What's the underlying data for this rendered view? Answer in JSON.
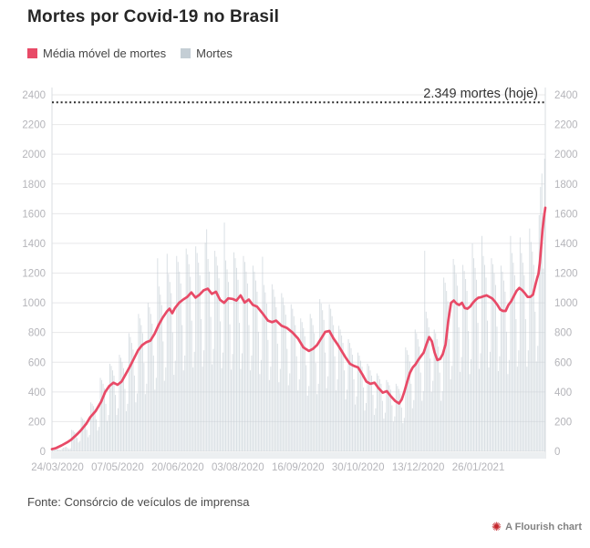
{
  "header": {
    "title": "Mortes por Covid-19 no Brasil"
  },
  "legend": {
    "items": [
      {
        "label": "Média móvel de mortes",
        "color": "#e84a67"
      },
      {
        "label": "Mortes",
        "color": "#c4ced5"
      }
    ]
  },
  "footer": {
    "source": "Fonte: Consórcio de veículos de imprensa"
  },
  "credit": {
    "label": "A Flourish chart",
    "icon": "flourish-burst-icon",
    "icon_color": "#c4262c",
    "icon_glyph": "✺"
  },
  "chart_data": {
    "type": "bar+line",
    "title": "Mortes por Covid-19 no Brasil",
    "xlabel": "",
    "ylabel": "",
    "ylim": [
      0,
      2400
    ],
    "y_tick_step": 200,
    "grid": true,
    "legend_position": "top-left",
    "x_tick_labels": [
      "24/03/2020",
      "07/05/2020",
      "20/06/2020",
      "03/08/2020",
      "16/09/2020",
      "30/10/2020",
      "13/12/2020",
      "26/01/2021"
    ],
    "x_tick_step_days": 44,
    "total_days": 362,
    "threshold_line": {
      "value": 2349,
      "label": "2.349 mortes (hoje)",
      "style": "dotted",
      "color": "#2f2f2f"
    },
    "series": [
      {
        "name": "Média móvel de mortes",
        "type": "line",
        "color": "#e84a67",
        "points": [
          [
            0,
            15
          ],
          [
            3,
            22
          ],
          [
            7,
            40
          ],
          [
            11,
            60
          ],
          [
            14,
            78
          ],
          [
            18,
            112
          ],
          [
            21,
            140
          ],
          [
            25,
            185
          ],
          [
            28,
            230
          ],
          [
            32,
            272
          ],
          [
            36,
            335
          ],
          [
            39,
            400
          ],
          [
            42,
            440
          ],
          [
            45,
            462
          ],
          [
            48,
            448
          ],
          [
            51,
            470
          ],
          [
            54,
            520
          ],
          [
            57,
            570
          ],
          [
            60,
            625
          ],
          [
            63,
            680
          ],
          [
            66,
            715
          ],
          [
            69,
            735
          ],
          [
            72,
            745
          ],
          [
            75,
            790
          ],
          [
            78,
            850
          ],
          [
            81,
            900
          ],
          [
            84,
            941
          ],
          [
            86,
            960
          ],
          [
            88,
            930
          ],
          [
            90,
            965
          ],
          [
            93,
            1000
          ],
          [
            96,
            1022
          ],
          [
            99,
            1040
          ],
          [
            102,
            1070
          ],
          [
            105,
            1035
          ],
          [
            108,
            1055
          ],
          [
            111,
            1084
          ],
          [
            114,
            1095
          ],
          [
            117,
            1060
          ],
          [
            120,
            1075
          ],
          [
            123,
            1020
          ],
          [
            126,
            1000
          ],
          [
            129,
            1030
          ],
          [
            132,
            1026
          ],
          [
            135,
            1015
          ],
          [
            138,
            1050
          ],
          [
            141,
            1002
          ],
          [
            144,
            1022
          ],
          [
            147,
            986
          ],
          [
            150,
            975
          ],
          [
            154,
            930
          ],
          [
            158,
            880
          ],
          [
            161,
            870
          ],
          [
            164,
            880
          ],
          [
            168,
            845
          ],
          [
            172,
            830
          ],
          [
            176,
            800
          ],
          [
            180,
            760
          ],
          [
            184,
            700
          ],
          [
            188,
            676
          ],
          [
            191,
            690
          ],
          [
            194,
            716
          ],
          [
            197,
            760
          ],
          [
            200,
            805
          ],
          [
            203,
            810
          ],
          [
            206,
            760
          ],
          [
            209,
            720
          ],
          [
            212,
            675
          ],
          [
            215,
            630
          ],
          [
            218,
            590
          ],
          [
            221,
            575
          ],
          [
            224,
            565
          ],
          [
            227,
            520
          ],
          [
            230,
            470
          ],
          [
            233,
            455
          ],
          [
            236,
            462
          ],
          [
            239,
            425
          ],
          [
            242,
            395
          ],
          [
            245,
            405
          ],
          [
            248,
            370
          ],
          [
            251,
            340
          ],
          [
            254,
            322
          ],
          [
            256,
            350
          ],
          [
            258,
            405
          ],
          [
            260,
            470
          ],
          [
            262,
            530
          ],
          [
            264,
            565
          ],
          [
            266,
            585
          ],
          [
            268,
            615
          ],
          [
            270,
            640
          ],
          [
            272,
            665
          ],
          [
            274,
            720
          ],
          [
            276,
            770
          ],
          [
            278,
            740
          ],
          [
            280,
            665
          ],
          [
            282,
            615
          ],
          [
            284,
            622
          ],
          [
            286,
            655
          ],
          [
            288,
            720
          ],
          [
            290,
            880
          ],
          [
            292,
            1000
          ],
          [
            294,
            1015
          ],
          [
            296,
            995
          ],
          [
            298,
            985
          ],
          [
            300,
            1000
          ],
          [
            302,
            965
          ],
          [
            304,
            960
          ],
          [
            306,
            975
          ],
          [
            308,
            1000
          ],
          [
            310,
            1020
          ],
          [
            312,
            1034
          ],
          [
            314,
            1038
          ],
          [
            316,
            1045
          ],
          [
            318,
            1050
          ],
          [
            320,
            1040
          ],
          [
            322,
            1030
          ],
          [
            324,
            1010
          ],
          [
            326,
            985
          ],
          [
            328,
            955
          ],
          [
            330,
            945
          ],
          [
            332,
            945
          ],
          [
            334,
            985
          ],
          [
            336,
            1010
          ],
          [
            338,
            1045
          ],
          [
            340,
            1080
          ],
          [
            342,
            1100
          ],
          [
            344,
            1085
          ],
          [
            346,
            1065
          ],
          [
            348,
            1040
          ],
          [
            350,
            1040
          ],
          [
            352,
            1055
          ],
          [
            354,
            1130
          ],
          [
            355,
            1165
          ],
          [
            356,
            1195
          ],
          [
            357,
            1270
          ],
          [
            358,
            1380
          ],
          [
            359,
            1495
          ],
          [
            360,
            1575
          ],
          [
            361,
            1640
          ]
        ]
      },
      {
        "name": "Mortes",
        "type": "bar",
        "color": "#c4ced5",
        "values": [
          5,
          8,
          10,
          12,
          14,
          10,
          8,
          18,
          25,
          28,
          30,
          22,
          15,
          20,
          145,
          140,
          130,
          125,
          90,
          60,
          70,
          230,
          220,
          210,
          195,
          145,
          95,
          110,
          330,
          320,
          305,
          285,
          215,
          140,
          165,
          495,
          480,
          455,
          425,
          320,
          205,
          245,
          590,
          575,
          545,
          510,
          380,
          245,
          290,
          650,
          630,
          600,
          560,
          420,
          270,
          320,
          795,
          770,
          730,
          685,
          510,
          330,
          390,
          925,
          895,
          850,
          795,
          595,
          385,
          455,
          1000,
          970,
          925,
          860,
          645,
          415,
          495,
          1300,
          1110,
          1055,
          985,
          740,
          475,
          565,
          1330,
          1195,
          1140,
          1065,
          800,
          515,
          610,
          1315,
          1275,
          1210,
          1130,
          850,
          545,
          645,
          1365,
          1325,
          1260,
          1175,
          880,
          565,
          670,
          1380,
          1335,
          1270,
          1185,
          890,
          570,
          680,
          1405,
          1495,
          1295,
          1210,
          905,
          585,
          690,
          1350,
          1310,
          1250,
          1165,
          875,
          560,
          665,
          1540,
          1285,
          1225,
          1140,
          855,
          550,
          655,
          1340,
          1300,
          1235,
          1155,
          865,
          555,
          660,
          1315,
          1275,
          1210,
          1130,
          850,
          545,
          645,
          1250,
          1210,
          1150,
          1075,
          805,
          520,
          615,
          1310,
          1120,
          1070,
          995,
          750,
          480,
          570,
          1125,
          1090,
          1040,
          970,
          725,
          465,
          555,
          1065,
          1035,
          985,
          920,
          690,
          445,
          525,
          990,
          960,
          910,
          850,
          640,
          410,
          485,
          895,
          870,
          830,
          775,
          580,
          375,
          440,
          925,
          895,
          850,
          795,
          595,
          385,
          455,
          1025,
          995,
          950,
          885,
          665,
          425,
          505,
          990,
          960,
          910,
          850,
          640,
          410,
          485,
          845,
          820,
          780,
          730,
          545,
          350,
          415,
          755,
          730,
          695,
          650,
          485,
          315,
          370,
          665,
          645,
          610,
          570,
          430,
          275,
          325,
          590,
          575,
          545,
          510,
          380,
          245,
          290,
          525,
          510,
          485,
          455,
          340,
          220,
          260,
          480,
          465,
          445,
          415,
          310,
          200,
          235,
          455,
          440,
          420,
          390,
          295,
          190,
          225,
          700,
          680,
          650,
          605,
          455,
          290,
          345,
          820,
          795,
          755,
          705,
          530,
          340,
          405,
          1350,
          940,
          895,
          835,
          625,
          400,
          475,
          820,
          795,
          755,
          705,
          530,
          340,
          405,
          1170,
          1135,
          1080,
          1010,
          755,
          485,
          575,
          1295,
          1255,
          1195,
          1115,
          835,
          535,
          635,
          1255,
          1215,
          1160,
          1080,
          810,
          520,
          620,
          1400,
          1300,
          1235,
          1155,
          865,
          555,
          660,
          1450,
          1315,
          1255,
          1170,
          880,
          565,
          670,
          1300,
          1260,
          1200,
          1120,
          840,
          540,
          640,
          1250,
          1210,
          1150,
          1075,
          805,
          520,
          615,
          1450,
          1335,
          1270,
          1185,
          890,
          570,
          680,
          1440,
          1335,
          1270,
          1185,
          890,
          570,
          680,
          1500,
          1410,
          1345,
          1255,
          940,
          605,
          710,
          1590,
          1780,
          1870,
          1230,
          1970
        ]
      }
    ]
  }
}
